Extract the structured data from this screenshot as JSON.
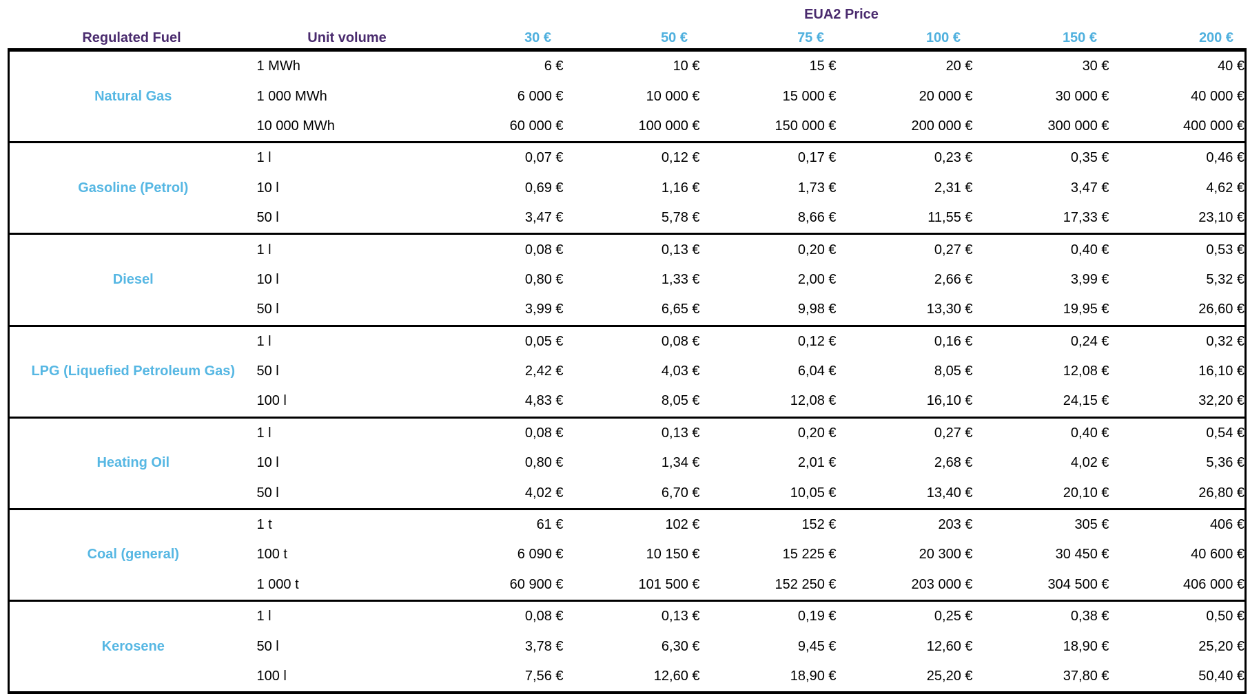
{
  "colors": {
    "header_purple": "#4A2B6E",
    "price_header_blue": "#4FB0DE",
    "fuel_label_blue": "#56B7E3",
    "border_black": "#000000",
    "value_text": "#000000"
  },
  "chart_data": {
    "type": "table",
    "title": "EUA2 Price",
    "column_headers": {
      "fuel": "Regulated Fuel",
      "unit": "Unit volume"
    },
    "price_headers": [
      "30 €",
      "50 €",
      "75 €",
      "100 €",
      "150 €",
      "200 €"
    ],
    "groups": [
      {
        "fuel": "Natural Gas",
        "rows": [
          {
            "unit": "1 MWh",
            "values": [
              "6 €",
              "10 €",
              "15 €",
              "20 €",
              "30 €",
              "40 €"
            ]
          },
          {
            "unit": "1 000 MWh",
            "values": [
              "6 000 €",
              "10 000 €",
              "15 000 €",
              "20 000 €",
              "30 000 €",
              "40 000 €"
            ]
          },
          {
            "unit": "10 000 MWh",
            "values": [
              "60 000 €",
              "100 000 €",
              "150 000 €",
              "200 000 €",
              "300 000 €",
              "400 000 €"
            ]
          }
        ]
      },
      {
        "fuel": "Gasoline (Petrol)",
        "rows": [
          {
            "unit": "1 l",
            "values": [
              "0,07 €",
              "0,12 €",
              "0,17 €",
              "0,23 €",
              "0,35 €",
              "0,46 €"
            ]
          },
          {
            "unit": "10 l",
            "values": [
              "0,69 €",
              "1,16 €",
              "1,73 €",
              "2,31 €",
              "3,47 €",
              "4,62 €"
            ]
          },
          {
            "unit": "50 l",
            "values": [
              "3,47 €",
              "5,78 €",
              "8,66 €",
              "11,55 €",
              "17,33 €",
              "23,10 €"
            ]
          }
        ]
      },
      {
        "fuel": "Diesel",
        "rows": [
          {
            "unit": "1 l",
            "values": [
              "0,08 €",
              "0,13 €",
              "0,20 €",
              "0,27 €",
              "0,40 €",
              "0,53 €"
            ]
          },
          {
            "unit": "10 l",
            "values": [
              "0,80 €",
              "1,33 €",
              "2,00 €",
              "2,66 €",
              "3,99 €",
              "5,32 €"
            ]
          },
          {
            "unit": "50 l",
            "values": [
              "3,99 €",
              "6,65 €",
              "9,98 €",
              "13,30 €",
              "19,95 €",
              "26,60 €"
            ]
          }
        ]
      },
      {
        "fuel": "LPG (Liquefied Petroleum Gas)",
        "rows": [
          {
            "unit": "1 l",
            "values": [
              "0,05 €",
              "0,08 €",
              "0,12 €",
              "0,16 €",
              "0,24 €",
              "0,32 €"
            ]
          },
          {
            "unit": "50 l",
            "values": [
              "2,42 €",
              "4,03 €",
              "6,04 €",
              "8,05 €",
              "12,08 €",
              "16,10 €"
            ]
          },
          {
            "unit": "100 l",
            "values": [
              "4,83 €",
              "8,05 €",
              "12,08 €",
              "16,10 €",
              "24,15 €",
              "32,20 €"
            ]
          }
        ]
      },
      {
        "fuel": "Heating Oil",
        "rows": [
          {
            "unit": "1 l",
            "values": [
              "0,08 €",
              "0,13 €",
              "0,20 €",
              "0,27 €",
              "0,40 €",
              "0,54 €"
            ]
          },
          {
            "unit": "10 l",
            "values": [
              "0,80 €",
              "1,34 €",
              "2,01 €",
              "2,68 €",
              "4,02 €",
              "5,36 €"
            ]
          },
          {
            "unit": "50 l",
            "values": [
              "4,02 €",
              "6,70 €",
              "10,05 €",
              "13,40 €",
              "20,10 €",
              "26,80 €"
            ]
          }
        ]
      },
      {
        "fuel": "Coal (general)",
        "rows": [
          {
            "unit": "1 t",
            "values": [
              "61 €",
              "102 €",
              "152 €",
              "203 €",
              "305 €",
              "406 €"
            ]
          },
          {
            "unit": "100 t",
            "values": [
              "6 090 €",
              "10 150 €",
              "15 225 €",
              "20 300 €",
              "30 450 €",
              "40 600 €"
            ]
          },
          {
            "unit": "1 000 t",
            "values": [
              "60 900 €",
              "101 500 €",
              "152 250 €",
              "203 000 €",
              "304 500 €",
              "406 000 €"
            ]
          }
        ]
      },
      {
        "fuel": "Kerosene",
        "rows": [
          {
            "unit": "1 l",
            "values": [
              "0,08 €",
              "0,13 €",
              "0,19 €",
              "0,25 €",
              "0,38 €",
              "0,50 €"
            ]
          },
          {
            "unit": "50 l",
            "values": [
              "3,78 €",
              "6,30 €",
              "9,45 €",
              "12,60 €",
              "18,90 €",
              "25,20 €"
            ]
          },
          {
            "unit": "100 l",
            "values": [
              "7,56 €",
              "12,60 €",
              "18,90 €",
              "25,20 €",
              "37,80 €",
              "50,40 €"
            ]
          }
        ]
      }
    ]
  }
}
